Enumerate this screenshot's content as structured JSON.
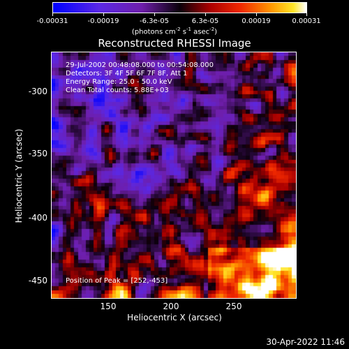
{
  "colorbar": {
    "tick_labels": [
      "-0.00031",
      "-0.00019",
      "-6.3e-05",
      "6.3e-05",
      "0.00019",
      "0.00031"
    ],
    "units_prefix": "(photons cm",
    "units_exp1": "-2",
    "units_mid1": " s",
    "units_exp2": "-1",
    "units_mid2": " asec",
    "units_exp3": "-2",
    "units_suffix": ")"
  },
  "title": "Reconstructed RHESSI Image",
  "info": {
    "time_range": "29-Jul-2002 00:48:08.000 to 00:54:08.000",
    "detectors": "Detectors: 3F 4F 5F 6F 7F 8F, Att 1",
    "energy": "Energy Range: 25.0 - 50.0 keV",
    "clean": "Clean     Total counts: 5.88E+03",
    "peak": "Position of Peak = [252,-453]"
  },
  "axes": {
    "xlabel": "Heliocentric X (arcsec)",
    "ylabel": "Heliocentric Y (arcsec)",
    "x_ticks": [
      "150",
      "200",
      "250"
    ],
    "y_ticks": [
      "-300",
      "-350",
      "-400",
      "-450"
    ]
  },
  "timestamp": "30-Apr-2022 11:46"
}
